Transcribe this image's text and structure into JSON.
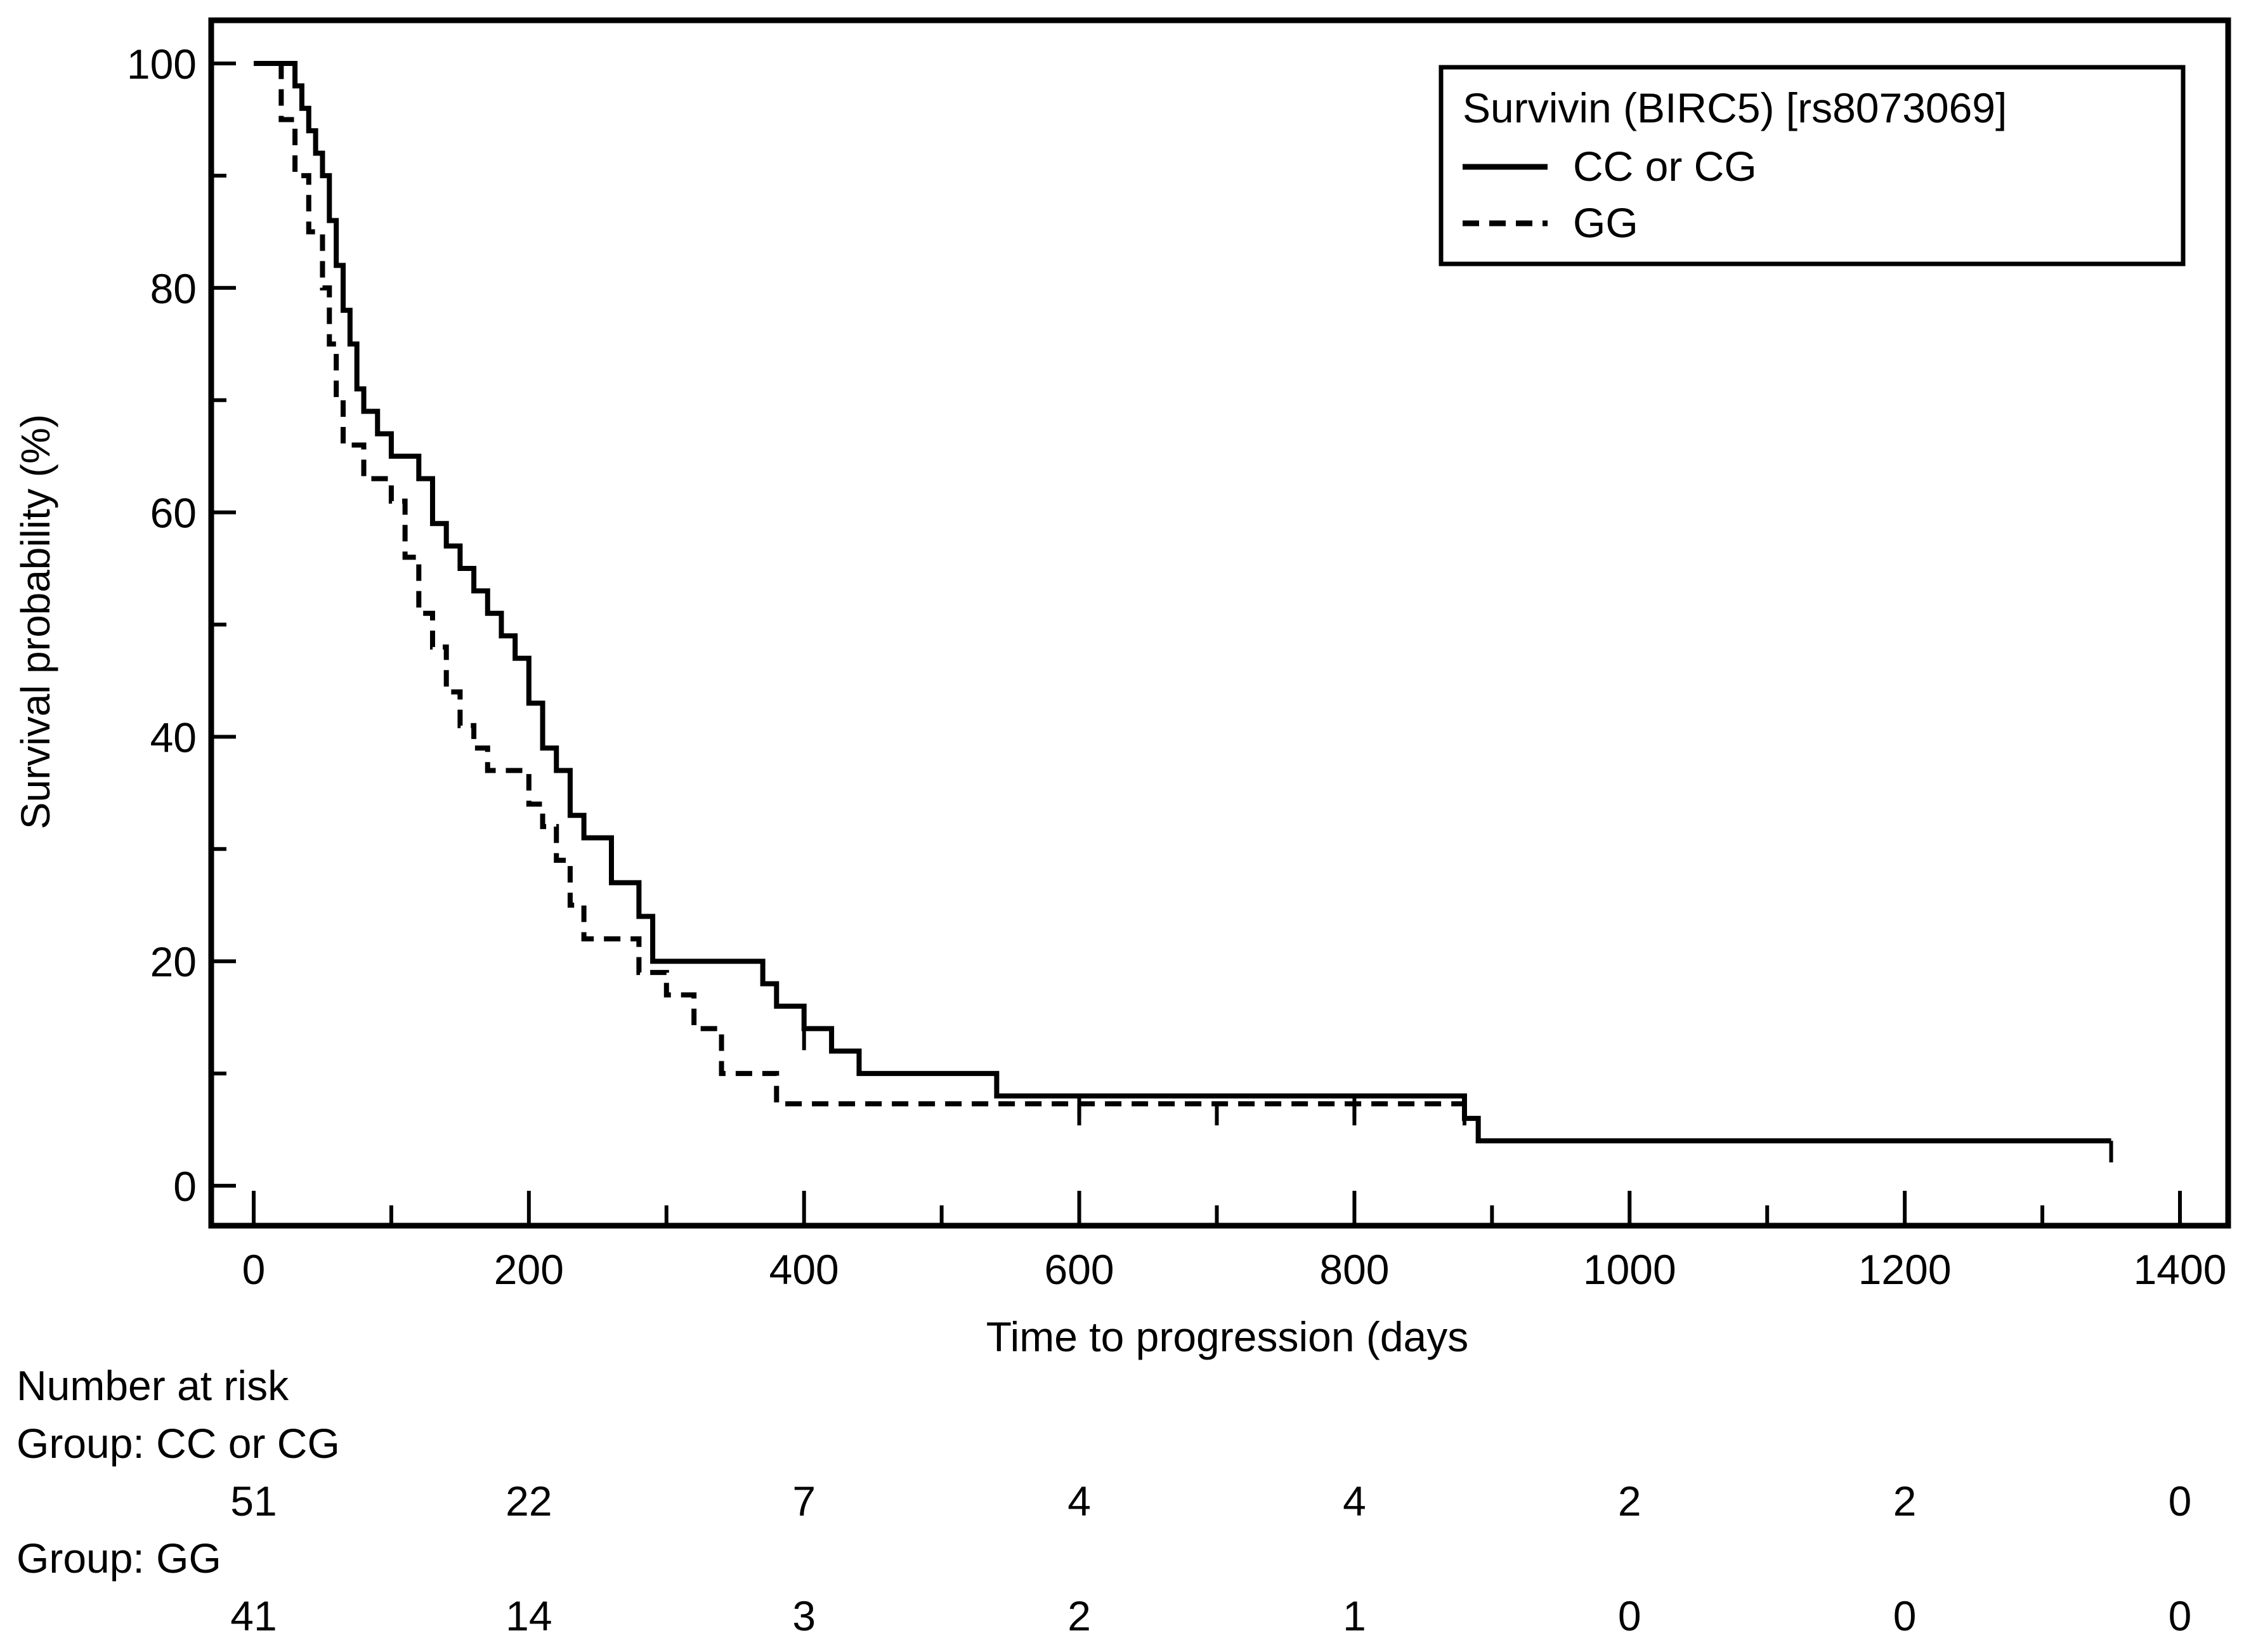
{
  "chart_data": {
    "type": "line",
    "subtype": "kaplan-meier",
    "title": "",
    "xlabel": "Time to progression (days",
    "ylabel": "Survival probability (%)",
    "xlim": [
      0,
      1400
    ],
    "ylim": [
      0,
      100
    ],
    "x_ticks": [
      0,
      200,
      400,
      600,
      800,
      1000,
      1200,
      1400
    ],
    "y_ticks": [
      0,
      20,
      40,
      60,
      80,
      100
    ],
    "legend": {
      "title": "Survivin (BIRC5) [rs8073069]",
      "position": "top-right"
    },
    "series": [
      {
        "name": "CC or CG",
        "style": "solid",
        "color": "#000000",
        "x": [
          0,
          25,
          30,
          35,
          40,
          45,
          50,
          55,
          60,
          65,
          70,
          75,
          80,
          90,
          100,
          110,
          120,
          130,
          140,
          150,
          160,
          170,
          180,
          190,
          200,
          210,
          220,
          230,
          240,
          260,
          280,
          290,
          300,
          320,
          340,
          360,
          370,
          380,
          400,
          420,
          440,
          460,
          540,
          860,
          880,
          890,
          1350
        ],
        "y": [
          100,
          100,
          98,
          96,
          94,
          92,
          90,
          86,
          82,
          78,
          75,
          71,
          69,
          67,
          65,
          65,
          63,
          59,
          57,
          55,
          53,
          51,
          49,
          47,
          43,
          39,
          37,
          33,
          31,
          27,
          24,
          20,
          20,
          20,
          20,
          20,
          18,
          16,
          14,
          12,
          10,
          10,
          8,
          8,
          6,
          4,
          4
        ],
        "censored_x": [
          400,
          600,
          800,
          1350
        ]
      },
      {
        "name": "GG",
        "style": "dashed",
        "color": "#000000",
        "x": [
          0,
          20,
          30,
          40,
          50,
          55,
          60,
          65,
          80,
          100,
          110,
          120,
          130,
          140,
          150,
          160,
          170,
          180,
          200,
          210,
          220,
          230,
          240,
          260,
          280,
          300,
          320,
          340,
          360,
          380,
          880
        ],
        "y": [
          100,
          95,
          90,
          85,
          80,
          75,
          70,
          66,
          63,
          61,
          56,
          51,
          48,
          44,
          41,
          39,
          37,
          37,
          34,
          32,
          29,
          25,
          22,
          22,
          19,
          17,
          14,
          10,
          10,
          7.3,
          7.3
        ],
        "censored_x": [
          600,
          700,
          800,
          880
        ]
      }
    ],
    "risk_table": {
      "title": "Number at risk",
      "time_points": [
        0,
        200,
        400,
        600,
        800,
        1000,
        1200,
        1400
      ],
      "groups": [
        {
          "label": "Group: CC or CG",
          "values": [
            "51",
            "22",
            "7",
            "4",
            "4",
            "2",
            "2",
            "0"
          ]
        },
        {
          "label": "Group: GG",
          "values": [
            "41",
            "14",
            "3",
            "2",
            "1",
            "0",
            "0",
            "0"
          ]
        }
      ]
    }
  }
}
